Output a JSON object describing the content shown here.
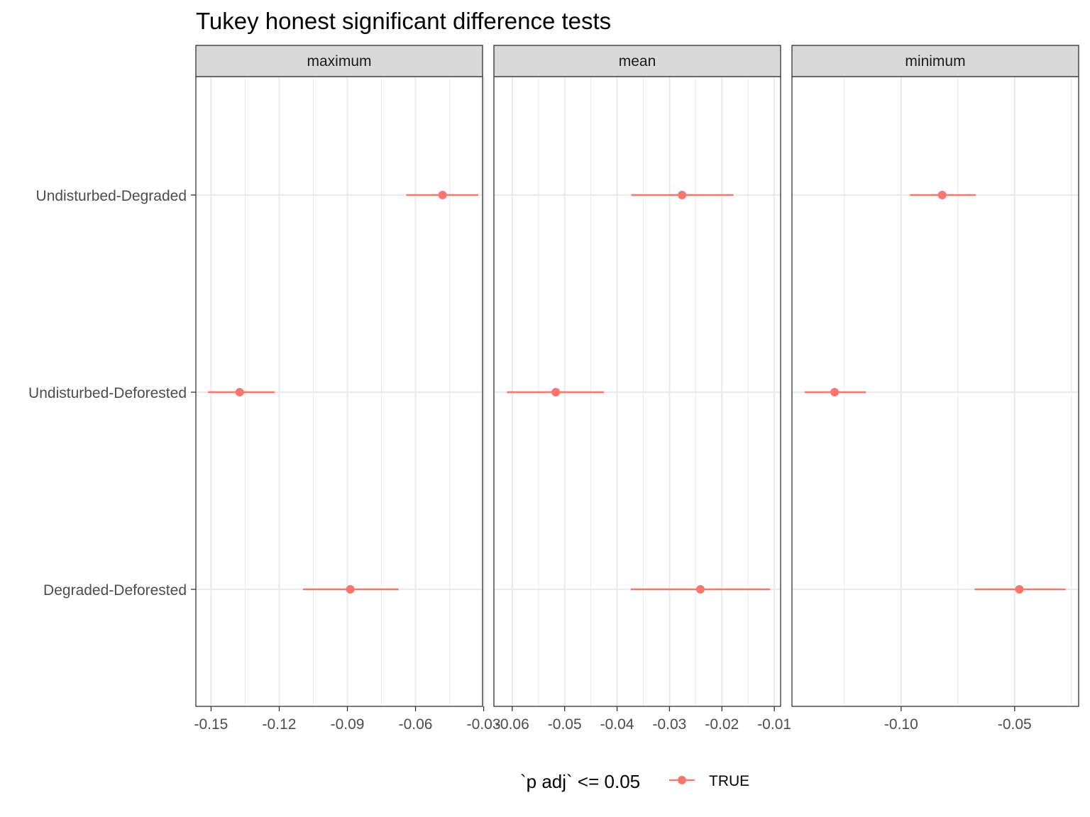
{
  "chart_data": {
    "type": "scatter",
    "title": "Tukey honest significant difference tests",
    "xlabel": "",
    "ylabel": "",
    "categories": [
      "Undisturbed-Degraded",
      "Undisturbed-Deforested",
      "Degraded-Deforested"
    ],
    "grid": true,
    "legend_placement": "bottom",
    "legend": {
      "title": "`p adj` <= 0.05",
      "entries": [
        {
          "label": "TRUE",
          "color": "#F8766D"
        }
      ]
    },
    "point_color": "#F8766D",
    "panels": [
      {
        "name": "maximum",
        "xlim": [
          -0.1567,
          -0.0305
        ],
        "xticks": [
          -0.15,
          -0.12,
          -0.09,
          -0.06,
          -0.03
        ],
        "xtick_labels": [
          "-0.15",
          "-0.12",
          "-0.09",
          "-0.06",
          "-0.03"
        ],
        "points": [
          {
            "category": "Undisturbed-Degraded",
            "estimate": -0.0481,
            "lwr": -0.0641,
            "upr": -0.0324
          },
          {
            "category": "Undisturbed-Deforested",
            "estimate": -0.1374,
            "lwr": -0.1514,
            "upr": -0.122
          },
          {
            "category": "Degraded-Deforested",
            "estimate": -0.0887,
            "lwr": -0.1095,
            "upr": -0.0675
          }
        ]
      },
      {
        "name": "mean",
        "xlim": [
          -0.0635,
          -0.0088
        ],
        "xticks": [
          -0.06,
          -0.05,
          -0.04,
          -0.03,
          -0.02,
          -0.01
        ],
        "xtick_labels": [
          "-0.06",
          "-0.05",
          "-0.04",
          "-0.03",
          "-0.02",
          "-0.01"
        ],
        "points": [
          {
            "category": "Undisturbed-Degraded",
            "estimate": -0.0276,
            "lwr": -0.0373,
            "upr": -0.0178
          },
          {
            "category": "Undisturbed-Deforested",
            "estimate": -0.0517,
            "lwr": -0.061,
            "upr": -0.0425
          },
          {
            "category": "Degraded-Deforested",
            "estimate": -0.0241,
            "lwr": -0.0374,
            "upr": -0.0108
          }
        ]
      },
      {
        "name": "minimum",
        "xlim": [
          -0.1481,
          -0.0218
        ],
        "xticks": [
          -0.1,
          -0.05
        ],
        "xtick_labels": [
          "-0.10",
          "-0.05"
        ],
        "points": [
          {
            "category": "Undisturbed-Degraded",
            "estimate": -0.0819,
            "lwr": -0.0961,
            "upr": -0.0671
          },
          {
            "category": "Undisturbed-Deforested",
            "estimate": -0.1293,
            "lwr": -0.1425,
            "upr": -0.1155
          },
          {
            "category": "Degraded-Deforested",
            "estimate": -0.0479,
            "lwr": -0.0676,
            "upr": -0.0275
          }
        ]
      }
    ]
  }
}
